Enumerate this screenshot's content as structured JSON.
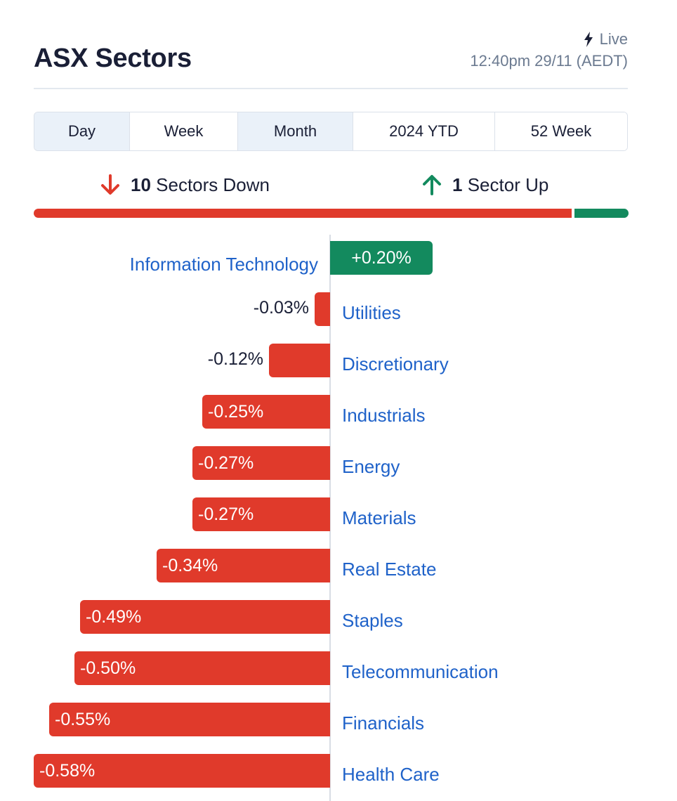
{
  "header": {
    "title": "ASX Sectors",
    "live_label": "Live",
    "timestamp": "12:40pm 29/11 (AEDT)"
  },
  "tabs": [
    {
      "label": "Day",
      "selected": true
    },
    {
      "label": "Week",
      "selected": false
    },
    {
      "label": "Month",
      "selected": true
    },
    {
      "label": "2024 YTD",
      "selected": false
    },
    {
      "label": "52 Week",
      "selected": false
    }
  ],
  "summary": {
    "down_count": "10",
    "down_label": "Sectors Down",
    "up_count": "1",
    "up_label": "Sector Up",
    "down_color": "#e03a2b",
    "up_color": "#138a5e"
  },
  "sectors": [
    {
      "name": "Information Technology",
      "value": "+0.20%",
      "change": 0.2
    },
    {
      "name": "Utilities",
      "value": "-0.03%",
      "change": -0.03
    },
    {
      "name": "Discretionary",
      "value": "-0.12%",
      "change": -0.12
    },
    {
      "name": "Industrials",
      "value": "-0.25%",
      "change": -0.25
    },
    {
      "name": "Energy",
      "value": "-0.27%",
      "change": -0.27
    },
    {
      "name": "Materials",
      "value": "-0.27%",
      "change": -0.27
    },
    {
      "name": "Real Estate",
      "value": "-0.34%",
      "change": -0.34
    },
    {
      "name": "Staples",
      "value": "-0.49%",
      "change": -0.49
    },
    {
      "name": "Telecommunication",
      "value": "-0.50%",
      "change": -0.5
    },
    {
      "name": "Financials",
      "value": "-0.55%",
      "change": -0.55
    },
    {
      "name": "Health Care",
      "value": "-0.58%",
      "change": -0.58
    }
  ]
}
